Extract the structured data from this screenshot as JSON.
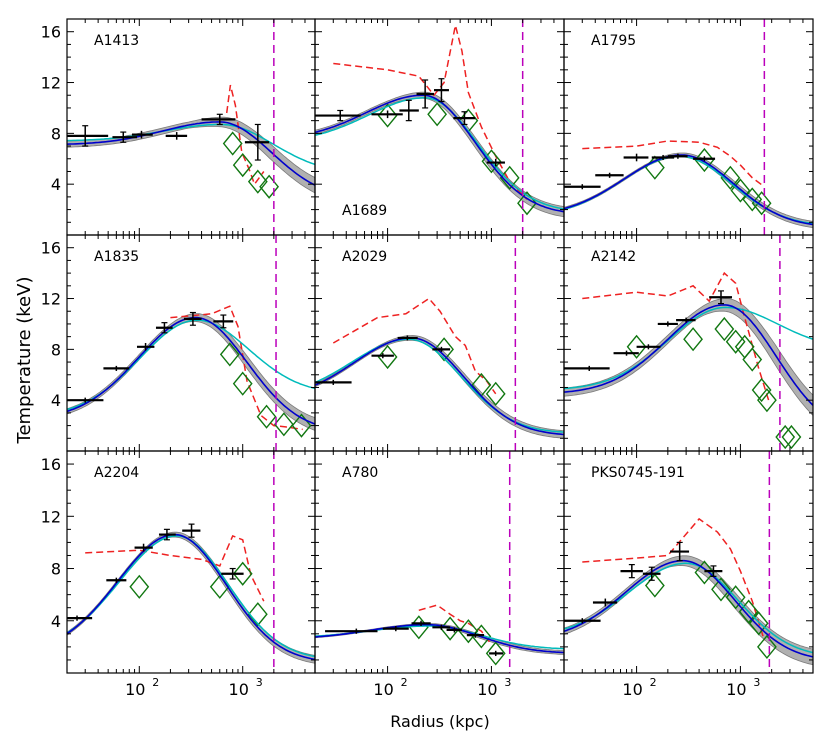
{
  "chart_data": {
    "type": "multi-panel",
    "xlabel": "Radius (kpc)",
    "ylabel": "Temperature (keV)",
    "xscale": "log",
    "xlim": [
      20,
      5000
    ],
    "ylim": [
      0,
      17
    ],
    "xtick_labels": [
      {
        "base": "10",
        "exp": "2",
        "value": 100
      },
      {
        "base": "10",
        "exp": "3",
        "value": 1000
      }
    ],
    "yticks": [
      4,
      8,
      12,
      16
    ],
    "ytick_labels": [
      "4",
      "8",
      "12",
      "16"
    ],
    "series_styles": {
      "data": "#000000",
      "profile_a": "#0000cc",
      "profile_b": "#00bbbb",
      "band": "#b0b0b0",
      "dashed": "#ee2222",
      "diamond": "#117711",
      "vline": "#bb00bb"
    },
    "panels": [
      {
        "name": "A1413",
        "label_pos": "top-left",
        "vline": 2000,
        "data": [
          [
            30,
            7.8,
            10,
            20,
            0.8
          ],
          [
            70,
            7.7,
            15,
            25,
            0.4
          ],
          [
            105,
            7.9,
            20,
            30,
            0.3
          ],
          [
            230,
            7.8,
            50,
            60,
            0.3
          ],
          [
            600,
            9.1,
            200,
            250,
            0.4
          ],
          [
            1400,
            7.3,
            350,
            400,
            1.4
          ]
        ],
        "curveA": {
          "peak_r": 600,
          "peak_t": 8.9,
          "inner_t": 7.1,
          "outer_t": 2.8
        },
        "curveB": {
          "peak_r": 620,
          "peak_t": 8.7,
          "inner_t": 7.4,
          "outer_t": 4.8
        },
        "band_w": 0.6,
        "dashed": [
          [
            700,
            9.6
          ],
          [
            760,
            11.8
          ],
          [
            850,
            10.2
          ],
          [
            980,
            6.5
          ],
          [
            1150,
            5.2
          ],
          [
            1300,
            4.0
          ],
          [
            1600,
            5.0
          ]
        ],
        "diamonds": [
          [
            800,
            7.2
          ],
          [
            1000,
            5.5
          ],
          [
            1400,
            4.2
          ],
          [
            1800,
            3.8
          ]
        ]
      },
      {
        "name": "A1689",
        "label_pos": "bottom-left",
        "vline": 2000,
        "data": [
          [
            35,
            9.4,
            15,
            20,
            0.4
          ],
          [
            100,
            9.5,
            30,
            40,
            0.3
          ],
          [
            160,
            9.8,
            30,
            40,
            0.8
          ],
          [
            230,
            11.1,
            40,
            50,
            1.1
          ],
          [
            330,
            11.4,
            50,
            60,
            0.9
          ],
          [
            550,
            9.2,
            120,
            150,
            0.5
          ],
          [
            1100,
            5.7,
            200,
            250,
            0.3
          ]
        ],
        "curveA": {
          "peak_r": 220,
          "peak_t": 11.0,
          "inner_t": 7.5,
          "outer_t": 1.6
        },
        "curveB": {
          "peak_r": 230,
          "peak_t": 10.8,
          "inner_t": 7.3,
          "outer_t": 1.8
        },
        "band_w": 0.4,
        "dashed": [
          [
            30,
            13.5
          ],
          [
            100,
            13.0
          ],
          [
            200,
            12.5
          ],
          [
            280,
            11.0
          ],
          [
            350,
            12.0
          ],
          [
            450,
            16.5
          ],
          [
            520,
            14.5
          ],
          [
            600,
            11.2
          ],
          [
            800,
            8.5
          ],
          [
            1100,
            6.2
          ],
          [
            1500,
            4.2
          ],
          [
            2200,
            2.8
          ]
        ],
        "diamonds": [
          [
            100,
            9.4
          ],
          [
            300,
            9.5
          ],
          [
            600,
            9.0
          ],
          [
            1000,
            5.8
          ],
          [
            1500,
            4.5
          ],
          [
            2200,
            2.5
          ]
        ]
      },
      {
        "name": "A1795",
        "label_pos": "top-left",
        "vline": 1700,
        "data": [
          [
            30,
            3.8,
            10,
            15,
            0.2
          ],
          [
            55,
            4.7,
            15,
            20,
            0.2
          ],
          [
            100,
            6.1,
            25,
            30,
            0.3
          ],
          [
            180,
            6.1,
            40,
            50,
            0.2
          ],
          [
            250,
            6.2,
            50,
            60,
            0.2
          ],
          [
            450,
            6.0,
            100,
            120,
            0.2
          ]
        ],
        "curveA": {
          "peak_r": 270,
          "peak_t": 6.3,
          "inner_t": 1.5,
          "outer_t": 0.6
        },
        "curveB": {
          "peak_r": 260,
          "peak_t": 6.2,
          "inner_t": 1.4,
          "outer_t": 0.7
        },
        "band_w": 0.25,
        "dashed": [
          [
            30,
            6.8
          ],
          [
            100,
            7.0
          ],
          [
            200,
            7.4
          ],
          [
            400,
            7.3
          ],
          [
            600,
            6.9
          ],
          [
            800,
            6.2
          ],
          [
            1000,
            5.5
          ],
          [
            1300,
            4.5
          ],
          [
            1700,
            3.8
          ]
        ],
        "diamonds": [
          [
            150,
            5.3
          ],
          [
            450,
            5.9
          ],
          [
            800,
            4.5
          ],
          [
            1000,
            3.5
          ],
          [
            1300,
            2.8
          ],
          [
            1600,
            2.5
          ]
        ]
      },
      {
        "name": "A1835",
        "label_pos": "top-left",
        "vline": 2100,
        "data": [
          [
            30,
            4.0,
            10,
            15,
            0.2
          ],
          [
            60,
            6.5,
            15,
            20,
            0.2
          ],
          [
            115,
            8.2,
            20,
            25,
            0.3
          ],
          [
            175,
            9.7,
            30,
            35,
            0.4
          ],
          [
            330,
            10.4,
            60,
            70,
            0.5
          ],
          [
            650,
            10.2,
            130,
            160,
            0.5
          ]
        ],
        "curveA": {
          "peak_r": 350,
          "peak_t": 10.5,
          "inner_t": 2.5,
          "outer_t": 1.5
        },
        "curveB": {
          "peak_r": 360,
          "peak_t": 10.3,
          "inner_t": 2.7,
          "outer_t": 4.5
        },
        "band_w": 0.5,
        "dashed": [
          [
            200,
            10.5
          ],
          [
            500,
            10.8
          ],
          [
            750,
            11.4
          ],
          [
            900,
            9.8
          ],
          [
            1100,
            5.5
          ],
          [
            1500,
            2.8
          ],
          [
            2000,
            2.0
          ],
          [
            2600,
            1.9
          ],
          [
            3800,
            1.7
          ]
        ],
        "diamonds": [
          [
            750,
            7.6
          ],
          [
            1000,
            5.3
          ],
          [
            1700,
            2.7
          ],
          [
            2500,
            2.1
          ],
          [
            3700,
            2.0
          ]
        ]
      },
      {
        "name": "A2029",
        "label_pos": "top-left",
        "vline": 1700,
        "data": [
          [
            30,
            5.4,
            10,
            15,
            0.2
          ],
          [
            90,
            7.5,
            20,
            25,
            0.2
          ],
          [
            155,
            8.9,
            30,
            40,
            0.2
          ],
          [
            330,
            8.0,
            60,
            70,
            0.2
          ]
        ],
        "curveA": {
          "peak_r": 170,
          "peak_t": 8.9,
          "inner_t": 4.0,
          "outer_t": 1.2
        },
        "curveB": {
          "peak_r": 160,
          "peak_t": 8.8,
          "inner_t": 4.2,
          "outer_t": 1.4
        },
        "band_w": 0.3,
        "dashed": [
          [
            30,
            8.5
          ],
          [
            80,
            10.5
          ],
          [
            150,
            10.8
          ],
          [
            250,
            12.0
          ],
          [
            320,
            11.0
          ],
          [
            450,
            9.0
          ],
          [
            560,
            8.3
          ],
          [
            700,
            6.3
          ],
          [
            900,
            5.5
          ],
          [
            1100,
            4.5
          ]
        ],
        "diamonds": [
          [
            100,
            7.4
          ],
          [
            350,
            8.0
          ],
          [
            800,
            5.2
          ],
          [
            1100,
            4.5
          ]
        ]
      },
      {
        "name": "A2142",
        "label_pos": "top-left",
        "vline": 2400,
        "data": [
          [
            35,
            6.5,
            15,
            20,
            0.2
          ],
          [
            80,
            7.7,
            20,
            25,
            0.2
          ],
          [
            130,
            8.2,
            30,
            40,
            0.2
          ],
          [
            200,
            10.0,
            40,
            50,
            0.2
          ],
          [
            300,
            10.3,
            60,
            70,
            0.2
          ],
          [
            650,
            12.1,
            150,
            180,
            0.5
          ]
        ],
        "curveA": {
          "peak_r": 700,
          "peak_t": 11.5,
          "inner_t": 4.5,
          "outer_t": 1.2
        },
        "curveB": {
          "peak_r": 720,
          "peak_t": 11.3,
          "inner_t": 4.8,
          "outer_t": 8.0
        },
        "band_w": 0.8,
        "dashed": [
          [
            30,
            12.0
          ],
          [
            100,
            12.5
          ],
          [
            200,
            12.2
          ],
          [
            350,
            13.0
          ],
          [
            500,
            11.8
          ],
          [
            700,
            14.0
          ],
          [
            900,
            13.2
          ],
          [
            1100,
            10.5
          ],
          [
            1500,
            6.5
          ],
          [
            1900,
            3.8
          ]
        ],
        "diamonds": [
          [
            100,
            8.2
          ],
          [
            350,
            8.8
          ],
          [
            700,
            9.6
          ],
          [
            900,
            8.6
          ],
          [
            1100,
            8.2
          ],
          [
            1300,
            7.2
          ],
          [
            1600,
            4.8
          ],
          [
            1800,
            4.0
          ],
          [
            2700,
            1.1
          ],
          [
            3100,
            1.1
          ]
        ]
      },
      {
        "name": "A2204",
        "label_pos": "top-left",
        "vline": 2000,
        "data": [
          [
            25,
            4.2,
            8,
            10,
            0.2
          ],
          [
            60,
            7.1,
            12,
            15,
            0.2
          ],
          [
            110,
            9.6,
            20,
            25,
            0.3
          ],
          [
            185,
            10.6,
            30,
            40,
            0.4
          ],
          [
            320,
            10.9,
            60,
            70,
            0.5
          ],
          [
            800,
            7.6,
            180,
            220,
            0.4
          ]
        ],
        "curveA": {
          "peak_r": 220,
          "peak_t": 10.6,
          "inner_t": 1.5,
          "outer_t": 0.8
        },
        "curveB": {
          "peak_r": 230,
          "peak_t": 10.5,
          "inner_t": 1.7,
          "outer_t": 1.0
        },
        "band_w": 0.3,
        "dashed": [
          [
            30,
            9.2
          ],
          [
            100,
            9.4
          ],
          [
            200,
            9.0
          ],
          [
            400,
            8.7
          ],
          [
            600,
            8.2
          ],
          [
            800,
            10.5
          ],
          [
            1000,
            10.2
          ],
          [
            1200,
            7.5
          ],
          [
            1600,
            5.5
          ]
        ],
        "diamonds": [
          [
            100,
            6.6
          ],
          [
            600,
            6.6
          ],
          [
            1000,
            7.6
          ],
          [
            1400,
            4.5
          ]
        ]
      },
      {
        "name": "A780",
        "label_pos": "top-left",
        "vline": 1500,
        "data": [
          [
            50,
            3.2,
            25,
            30,
            0.2
          ],
          [
            120,
            3.4,
            30,
            40,
            0.2
          ],
          [
            210,
            3.8,
            40,
            50,
            0.2
          ],
          [
            330,
            3.5,
            60,
            70,
            0.2
          ],
          [
            440,
            3.3,
            70,
            80,
            0.2
          ],
          [
            700,
            2.9,
            120,
            150,
            0.2
          ],
          [
            1100,
            1.5,
            150,
            200,
            0.2
          ]
        ],
        "curveA": {
          "peak_r": 240,
          "peak_t": 3.7,
          "inner_t": 2.6,
          "outer_t": 1.5
        },
        "curveB": {
          "peak_r": 250,
          "peak_t": 3.6,
          "inner_t": 2.7,
          "outer_t": 1.8
        },
        "band_w": 0.15,
        "dashed": [
          [
            200,
            4.8
          ],
          [
            300,
            5.2
          ],
          [
            400,
            4.5
          ],
          [
            500,
            4.0
          ],
          [
            600,
            3.8
          ],
          [
            800,
            3.2
          ],
          [
            1000,
            2.2
          ]
        ],
        "diamonds": [
          [
            200,
            3.5
          ],
          [
            400,
            3.4
          ],
          [
            600,
            3.2
          ],
          [
            800,
            2.8
          ],
          [
            1100,
            1.5
          ]
        ]
      },
      {
        "name": "PKS0745-191",
        "label_pos": "top-left",
        "vline": 1900,
        "data": [
          [
            30,
            4.0,
            10,
            15,
            0.2
          ],
          [
            50,
            5.4,
            12,
            15,
            0.3
          ],
          [
            90,
            7.8,
            20,
            25,
            0.5
          ],
          [
            140,
            7.6,
            25,
            30,
            0.5
          ],
          [
            260,
            9.3,
            50,
            60,
            0.7
          ],
          [
            550,
            7.8,
            100,
            120,
            0.4
          ]
        ],
        "curveA": {
          "peak_r": 280,
          "peak_t": 8.6,
          "inner_t": 2.5,
          "outer_t": 0.9
        },
        "curveB": {
          "peak_r": 300,
          "peak_t": 8.4,
          "inner_t": 2.8,
          "outer_t": 1.2
        },
        "band_w": 0.6,
        "dashed": [
          [
            30,
            8.5
          ],
          [
            100,
            8.8
          ],
          [
            200,
            9.0
          ],
          [
            400,
            11.8
          ],
          [
            600,
            10.8
          ],
          [
            800,
            9.5
          ],
          [
            1000,
            7.8
          ],
          [
            1300,
            5.5
          ],
          [
            1700,
            2.5
          ]
        ],
        "diamonds": [
          [
            150,
            6.7
          ],
          [
            450,
            7.7
          ],
          [
            650,
            6.4
          ],
          [
            900,
            5.8
          ],
          [
            1200,
            4.7
          ],
          [
            1500,
            3.8
          ],
          [
            1800,
            2.0
          ]
        ]
      }
    ]
  }
}
